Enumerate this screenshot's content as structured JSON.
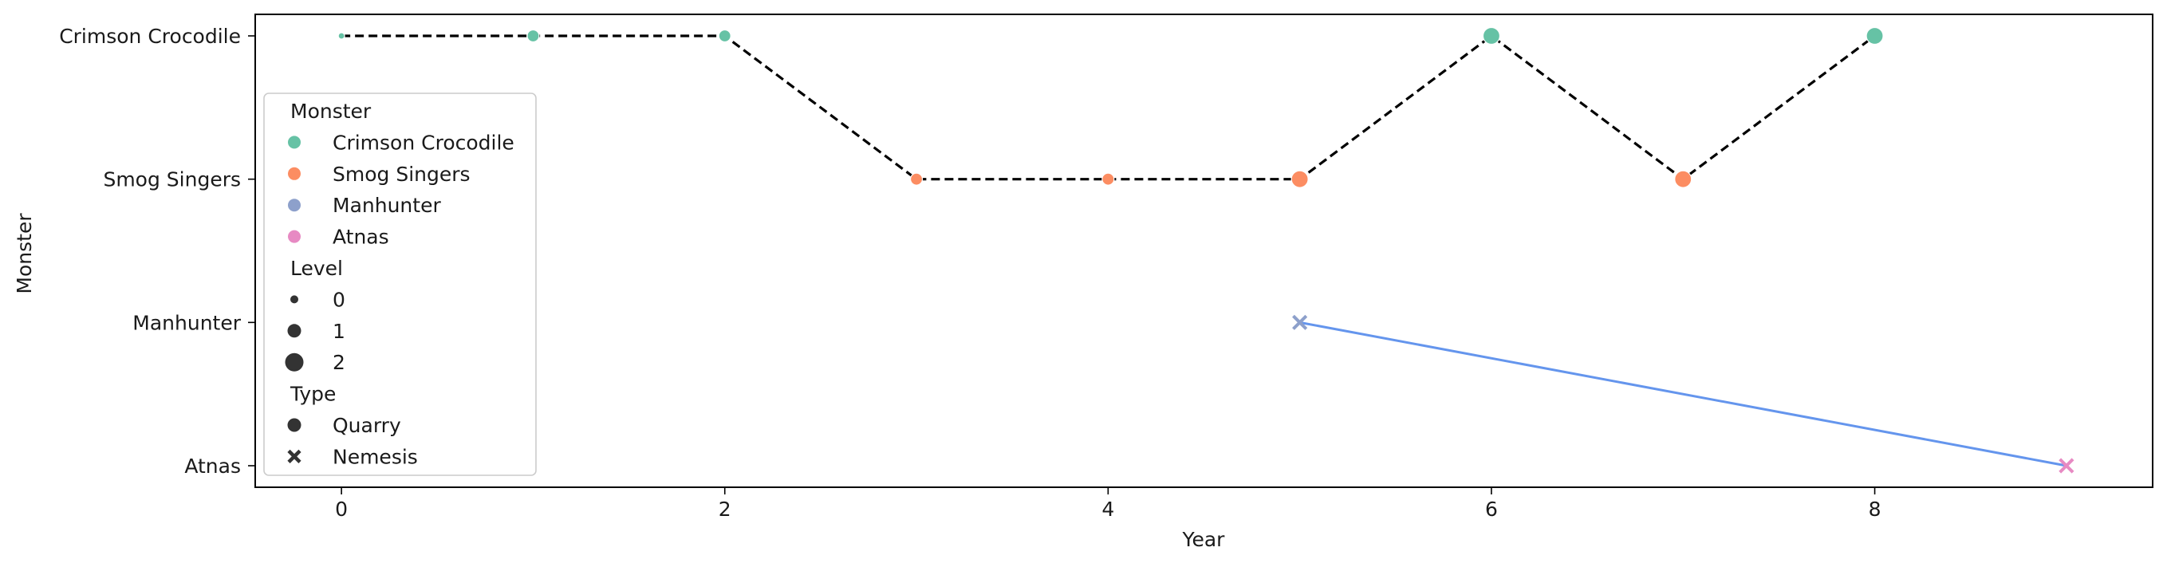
{
  "chart_data": {
    "type": "scatter",
    "title": "",
    "xlabel": "Year",
    "ylabel": "Monster",
    "xlim": [
      -0.45,
      9.45
    ],
    "xticks": [
      0,
      2,
      4,
      6,
      8
    ],
    "categories": [
      "Crimson Crocodile",
      "Smog Singers",
      "Manhunter",
      "Atnas"
    ],
    "grid": false,
    "legend_position": "center-left",
    "colors": {
      "Crimson Crocodile": "#66c2a5",
      "Smog Singers": "#fc8d62",
      "Manhunter": "#8da0cb",
      "Atnas": "#e78ac3"
    },
    "points": [
      {
        "x": 0,
        "monster": "Crimson Crocodile",
        "level": 0,
        "type": "Quarry"
      },
      {
        "x": 1,
        "monster": "Crimson Crocodile",
        "level": 1,
        "type": "Quarry"
      },
      {
        "x": 2,
        "monster": "Crimson Crocodile",
        "level": 1,
        "type": "Quarry"
      },
      {
        "x": 3,
        "monster": "Smog Singers",
        "level": 1,
        "type": "Quarry"
      },
      {
        "x": 4,
        "monster": "Smog Singers",
        "level": 1,
        "type": "Quarry"
      },
      {
        "x": 5,
        "monster": "Smog Singers",
        "level": 2,
        "type": "Quarry"
      },
      {
        "x": 5,
        "monster": "Manhunter",
        "level": 1,
        "type": "Nemesis"
      },
      {
        "x": 6,
        "monster": "Crimson Crocodile",
        "level": 2,
        "type": "Quarry"
      },
      {
        "x": 7,
        "monster": "Smog Singers",
        "level": 2,
        "type": "Quarry"
      },
      {
        "x": 8,
        "monster": "Crimson Crocodile",
        "level": 2,
        "type": "Quarry"
      },
      {
        "x": 9,
        "monster": "Atnas",
        "level": 1,
        "type": "Nemesis"
      }
    ],
    "lines": [
      {
        "style": "dashed",
        "color": "#000000",
        "points": [
          [
            0,
            "Crimson Crocodile"
          ],
          [
            1,
            "Crimson Crocodile"
          ],
          [
            2,
            "Crimson Crocodile"
          ],
          [
            3,
            "Smog Singers"
          ],
          [
            4,
            "Smog Singers"
          ],
          [
            5,
            "Smog Singers"
          ],
          [
            6,
            "Crimson Crocodile"
          ],
          [
            7,
            "Smog Singers"
          ],
          [
            8,
            "Crimson Crocodile"
          ]
        ]
      },
      {
        "style": "solid",
        "color": "#6495ed",
        "points": [
          [
            5,
            "Manhunter"
          ],
          [
            9,
            "Atnas"
          ]
        ]
      }
    ],
    "legend": {
      "sections": [
        {
          "title": "Monster",
          "kind": "color",
          "entries": [
            "Crimson Crocodile",
            "Smog Singers",
            "Manhunter",
            "Atnas"
          ]
        },
        {
          "title": "Level",
          "kind": "size",
          "entries": [
            {
              "label": "0",
              "level": 0
            },
            {
              "label": "1",
              "level": 1
            },
            {
              "label": "2",
              "level": 2
            }
          ]
        },
        {
          "title": "Type",
          "kind": "marker",
          "entries": [
            {
              "label": "Quarry",
              "marker": "circle"
            },
            {
              "label": "Nemesis",
              "marker": "x"
            }
          ]
        }
      ]
    }
  }
}
